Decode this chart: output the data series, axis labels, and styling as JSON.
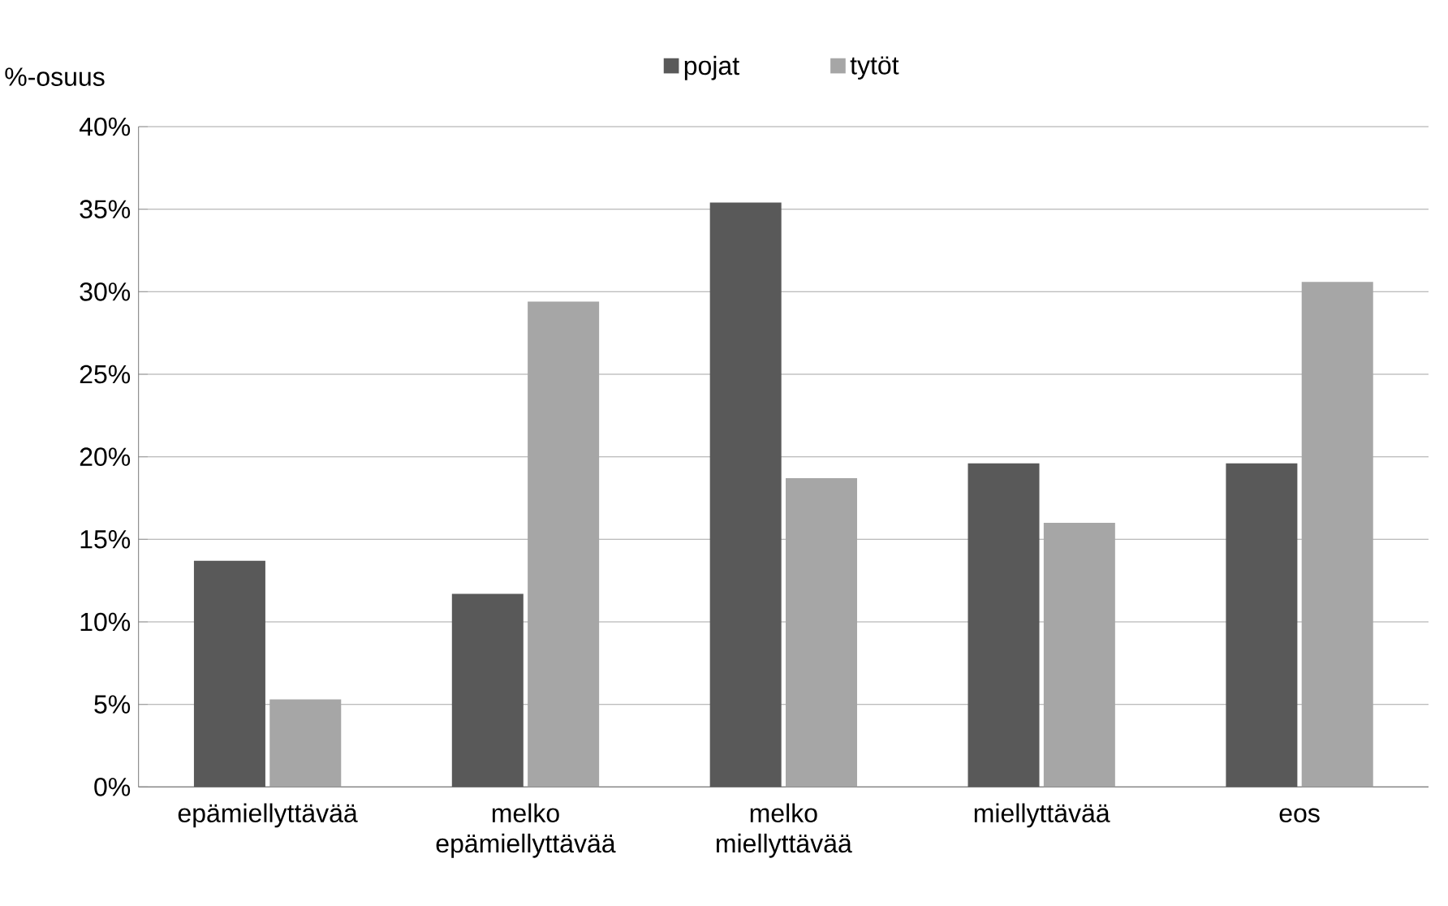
{
  "chart_data": {
    "type": "bar",
    "ylabel": "%-osuus",
    "categories": [
      "epämiellyttävää",
      "melko epämiellyttävää",
      "melko miellyttävää",
      "miellyttävää",
      "eos"
    ],
    "series": [
      {
        "name": "pojat",
        "color": "#595959",
        "values": [
          13.7,
          11.7,
          35.4,
          19.6,
          19.6
        ]
      },
      {
        "name": "tytöt",
        "color": "#a6a6a6",
        "values": [
          5.3,
          29.4,
          18.7,
          16.0,
          30.6
        ]
      }
    ],
    "ylim": [
      0,
      40
    ],
    "yticks": [
      {
        "value": 0,
        "label": "0%"
      },
      {
        "value": 5,
        "label": "5%"
      },
      {
        "value": 10,
        "label": "10%"
      },
      {
        "value": 15,
        "label": "15%"
      },
      {
        "value": 20,
        "label": "20%"
      },
      {
        "value": 25,
        "label": "25%"
      },
      {
        "value": 30,
        "label": "30%"
      },
      {
        "value": 35,
        "label": "35%"
      },
      {
        "value": 40,
        "label": "40%"
      }
    ],
    "grid": "y",
    "legend": "top"
  }
}
